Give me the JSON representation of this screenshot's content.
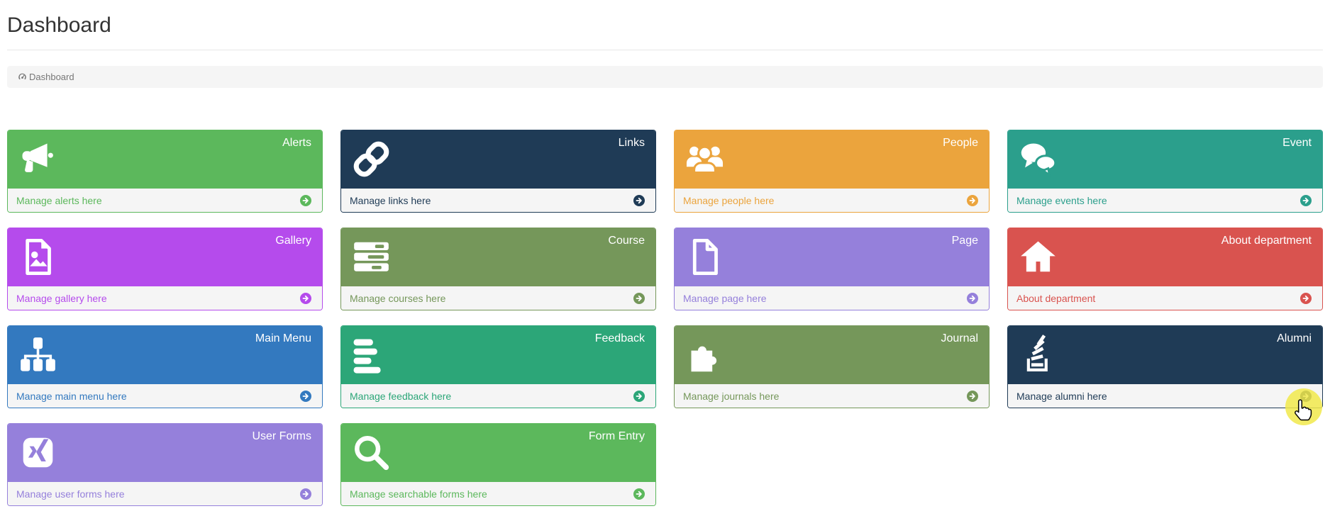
{
  "header": {
    "title": "Dashboard"
  },
  "breadcrumb": {
    "items": [
      {
        "icon": "dashboard-icon",
        "label": "Dashboard"
      }
    ]
  },
  "tile_arrow_icon": "arrow-circle-right-icon",
  "tiles": [
    {
      "label": "Alerts",
      "footer": "Manage alerts here",
      "color": "#5cb85c",
      "icon": "megaphone-icon"
    },
    {
      "label": "Links",
      "footer": "Manage links here",
      "color": "#1f3b56",
      "icon": "chain-link-icon"
    },
    {
      "label": "People",
      "footer": "Manage people here",
      "color": "#eba43d",
      "icon": "users-icon"
    },
    {
      "label": "Event",
      "footer": "Manage events here",
      "color": "#2b9f8c",
      "icon": "chat-bubbles-icon"
    },
    {
      "label": "Gallery",
      "footer": "Manage gallery here",
      "color": "#b54bec",
      "icon": "image-file-icon"
    },
    {
      "label": "Course",
      "footer": "Manage courses here",
      "color": "#75975a",
      "icon": "tasks-icon"
    },
    {
      "label": "Page",
      "footer": "Manage page here",
      "color": "#9580db",
      "icon": "file-icon"
    },
    {
      "label": "About department",
      "footer": "About department",
      "color": "#d9534f",
      "icon": "home-icon"
    },
    {
      "label": "Main Menu",
      "footer": "Manage main menu here",
      "color": "#3379bf",
      "icon": "sitemap-icon"
    },
    {
      "label": "Feedback",
      "footer": "Manage feedback here",
      "color": "#2ca678",
      "icon": "align-left-icon"
    },
    {
      "label": "Journal",
      "footer": "Manage journals here",
      "color": "#75975a",
      "icon": "puzzle-piece-icon"
    },
    {
      "label": "Alumni",
      "footer": "Manage alumni here",
      "color": "#1f3b56",
      "icon": "stack-icon"
    },
    {
      "label": "User Forms",
      "footer": "Manage user forms here",
      "color": "#9580db",
      "icon": "xing-icon"
    },
    {
      "label": "Form Entry",
      "footer": "Manage searchable forms here",
      "color": "#5cb85c",
      "icon": "search-icon"
    }
  ],
  "colors": {
    "breadcrumb_bg": "#f5f5f5",
    "tile_footer_bg": "#f5f5f5",
    "header_rule": "#e7e7e7",
    "highlight": "#f1e94b"
  },
  "cursor": {
    "icon": "hand-pointer-icon"
  }
}
